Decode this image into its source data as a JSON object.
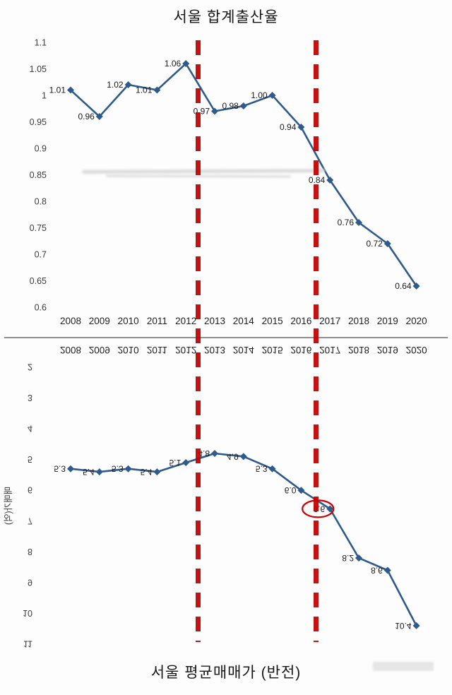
{
  "page": {
    "title_top": "서울 합계출산율",
    "title_bottom": "서울 평균매매가 (반전)"
  },
  "colors": {
    "line": "#2e5a8c",
    "marker": "#2e5a8c",
    "dashed_line": "#c00000",
    "annotation_circle": "#cc0000",
    "text": "#1a1a1a"
  },
  "chart_data": [
    {
      "type": "line",
      "title": "서울 합계출산율",
      "categories": [
        "2008",
        "2009",
        "2010",
        "2011",
        "2012",
        "2013",
        "2014",
        "2015",
        "2016",
        "2017",
        "2018",
        "2019",
        "2020"
      ],
      "values": [
        1.01,
        0.96,
        1.02,
        1.01,
        1.06,
        0.97,
        0.98,
        1.0,
        0.94,
        0.84,
        0.76,
        0.72,
        0.64
      ],
      "point_labels": [
        "1.01",
        "0.96",
        "1.02",
        "1.01",
        "1.06",
        "0.97",
        "0.98",
        "1.00",
        "0.94",
        "0.84",
        "0.76",
        "0.72",
        "0.64"
      ],
      "ylim": [
        0.6,
        1.1
      ],
      "ytick_labels_top_to_bottom": [
        "1.1",
        "1.05",
        "1",
        "0.95",
        "0.9",
        "0.85",
        "0.8",
        "0.75",
        "0.7",
        "0.65",
        "0.6"
      ],
      "xlabel": "",
      "ylabel": "",
      "grid": false,
      "legend": "none",
      "marker": "diamond",
      "flipped_vertically": false
    },
    {
      "type": "line",
      "title": "서울 평균매매가 (반전)",
      "categories": [
        "2008",
        "2009",
        "2010",
        "2011",
        "2012",
        "2013",
        "2014",
        "2015",
        "2016",
        "2017",
        "2018",
        "2019",
        "2020"
      ],
      "values": [
        5.3,
        5.4,
        5.3,
        5.4,
        5.1,
        4.8,
        4.9,
        5.3,
        6.0,
        6.6,
        8.2,
        8.6,
        10.4
      ],
      "point_labels": [
        "5.3",
        "5.4",
        "5.3",
        "5.4",
        "5.1",
        "4.8",
        "4.9",
        "5.3",
        "6.0",
        "6.6",
        "8.2",
        "8.6",
        "10.4"
      ],
      "ylim": [
        2,
        11
      ],
      "ytick_labels_top_to_bottom": [
        "11",
        "10",
        "9",
        "8",
        "7",
        "6",
        "5",
        "4",
        "3",
        "2"
      ],
      "xlabel": "",
      "ylabel": "매매가(억)",
      "grid": false,
      "legend": "none",
      "marker": "diamond",
      "flipped_vertically": true,
      "annotations": {
        "circled_point_index": 9,
        "circled_point_year": "2017"
      }
    }
  ],
  "annotations": {
    "vertical_dashed_lines": {
      "color": "#c00000",
      "between_years": [
        [
          "2012",
          "2013"
        ],
        [
          "2016",
          "2017"
        ]
      ]
    }
  }
}
